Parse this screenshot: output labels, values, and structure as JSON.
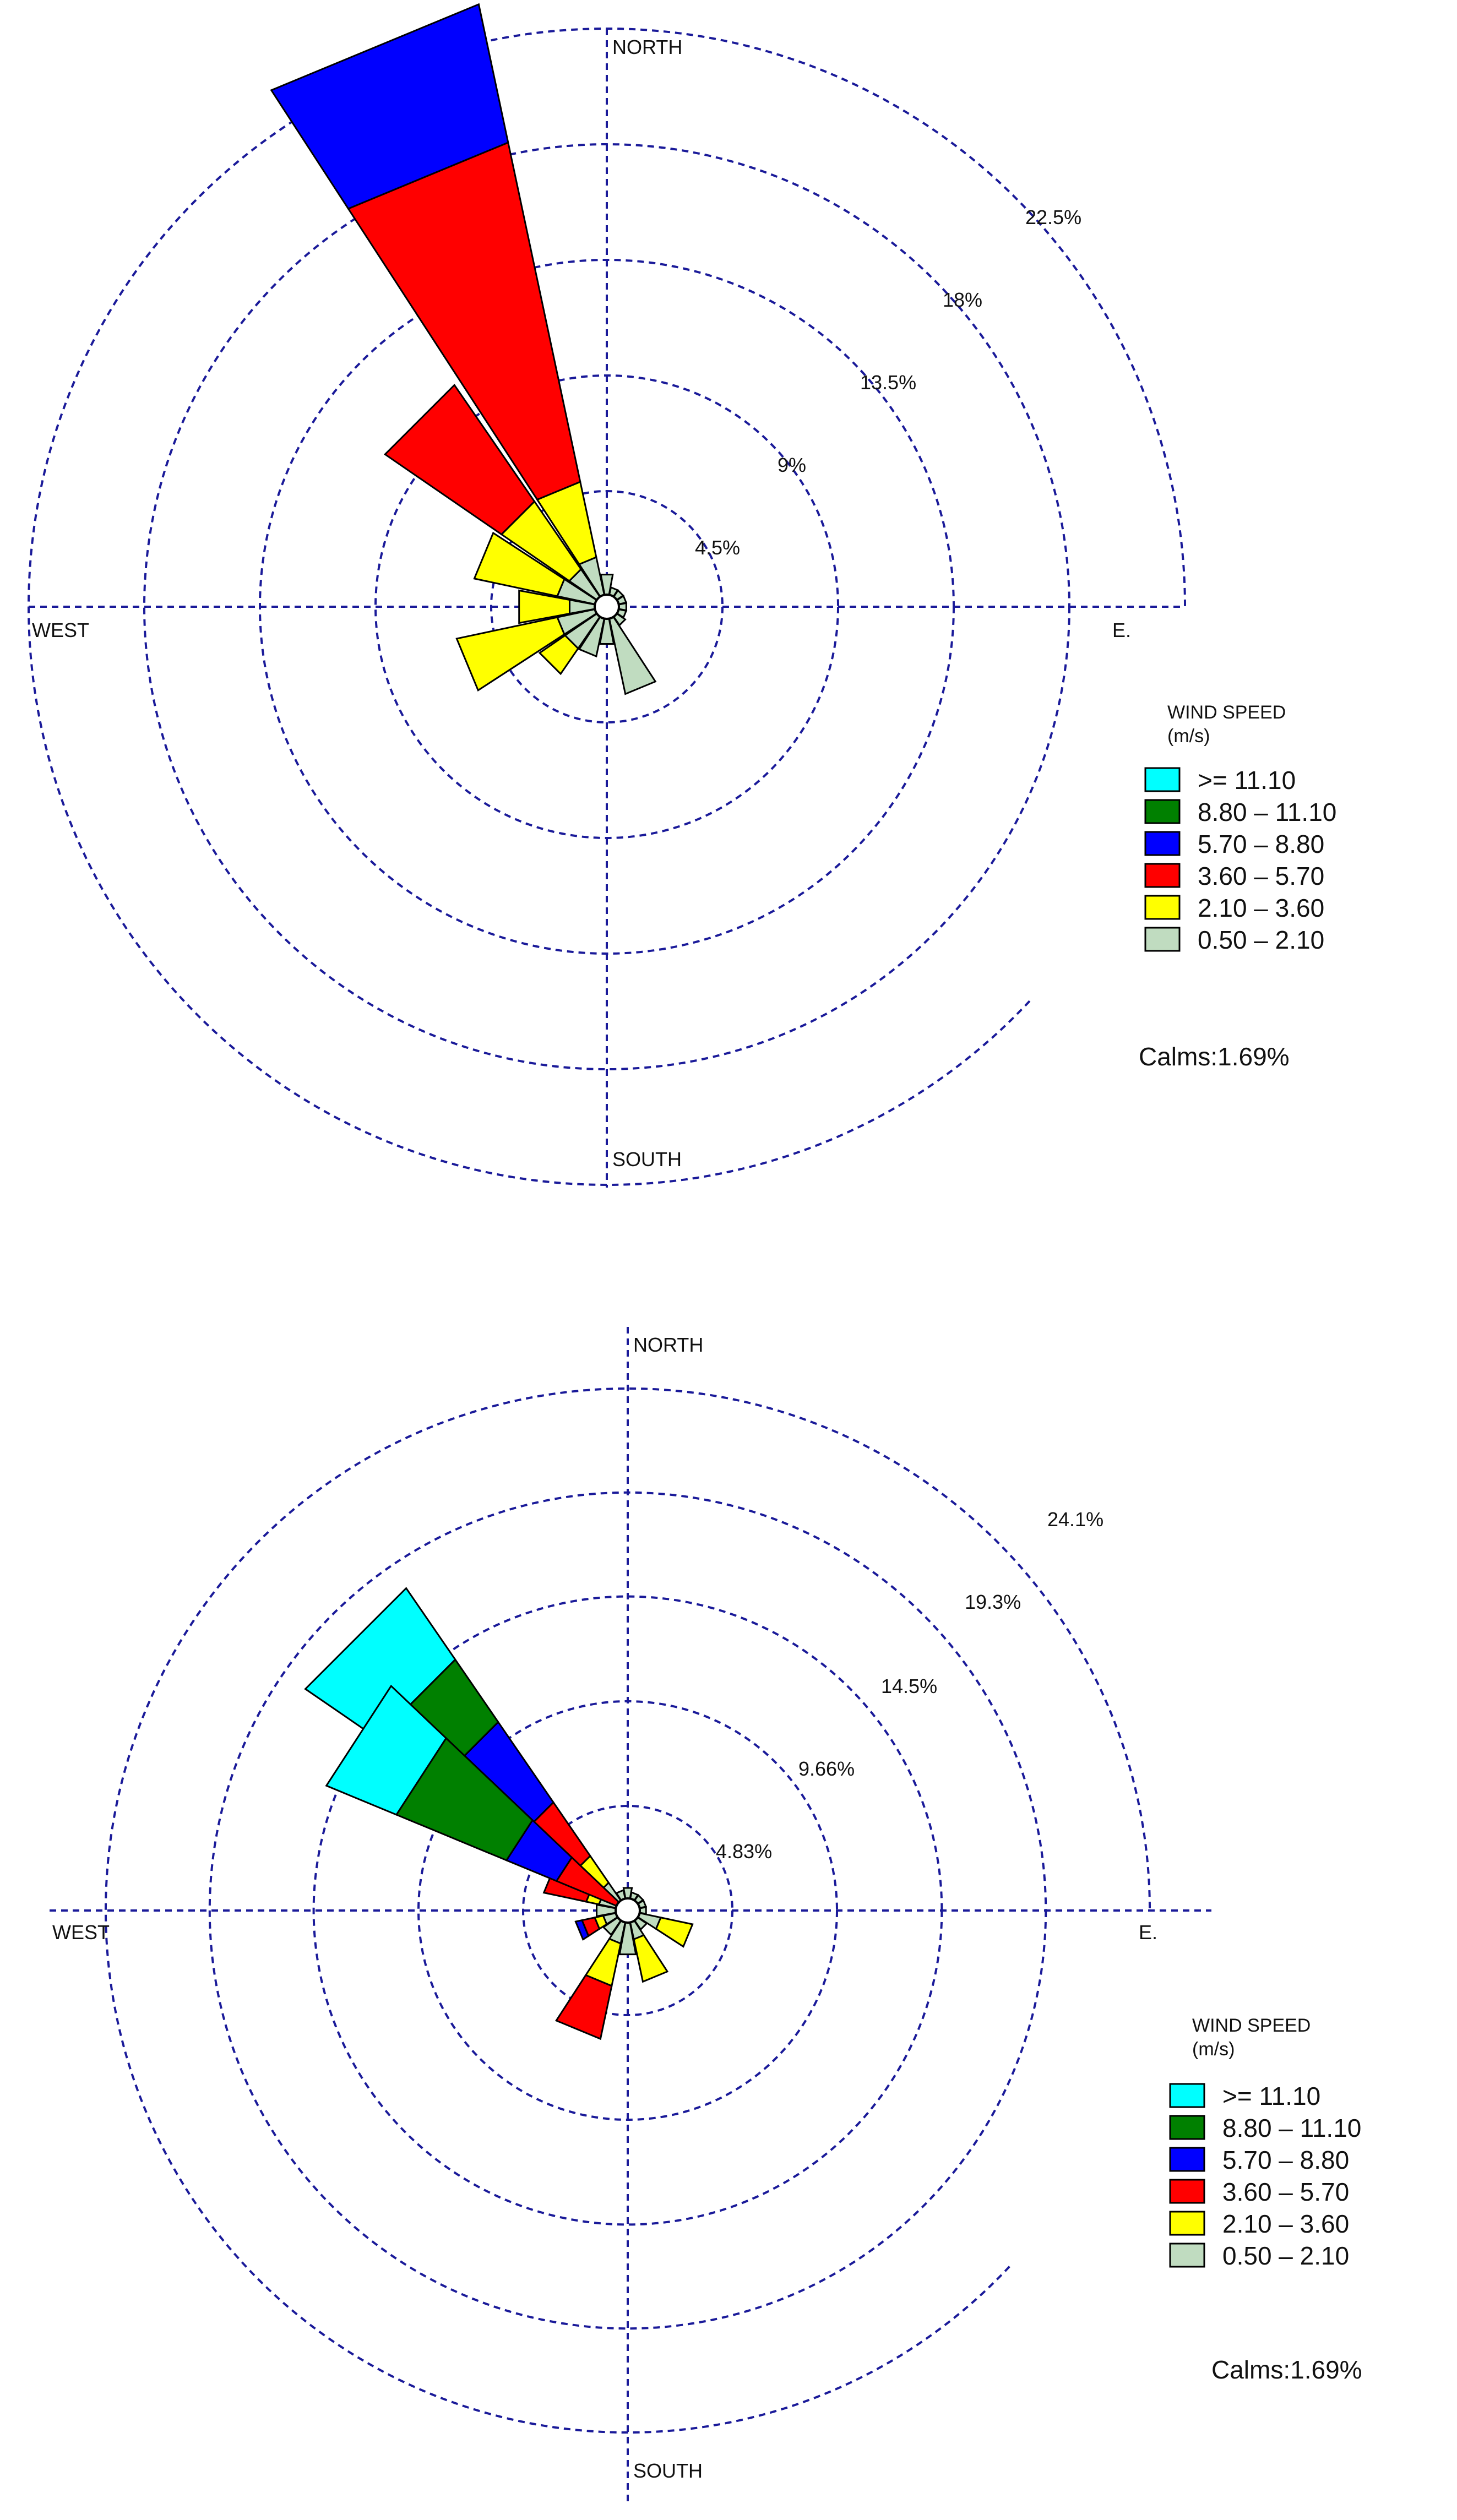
{
  "chart_data": [
    {
      "type": "windrose",
      "directions": [
        "N",
        "NNE",
        "NE",
        "ENE",
        "E",
        "ESE",
        "SE",
        "SSE",
        "S",
        "SSW",
        "SW",
        "WSW",
        "W",
        "WNW",
        "NW",
        "NNW"
      ],
      "direction_labels": {
        "north": "NORTH",
        "east": "E.",
        "south": "SOUTH",
        "west": "WEST"
      },
      "ring_labels": [
        "4.5%",
        "9%",
        "13.5%",
        "18%",
        "22.5%"
      ],
      "ring_values": [
        4.5,
        9,
        13.5,
        18,
        22.5
      ],
      "legend_title": "WIND SPEED",
      "legend_unit": "(m/s)",
      "calms": "Calms:1.69%",
      "speed_bins": [
        {
          "label": "0.50 – 2.10",
          "color": "#c0dcc0"
        },
        {
          "label": "2.10 – 3.60",
          "color": "#ffff00"
        },
        {
          "label": "3.60 – 5.70",
          "color": "#ff0000"
        },
        {
          "label": "5.70 – 8.80",
          "color": "#0000ff"
        },
        {
          "label": "8.80 – 11.10",
          "color": "#008000"
        },
        {
          "label": ">= 11.10",
          "color": "#00ffff"
        }
      ],
      "frequencies": {
        "N": [
          0.8,
          0,
          0,
          0,
          0,
          0
        ],
        "NNE": [
          0.3,
          0,
          0,
          0,
          0,
          0
        ],
        "NE": [
          0.3,
          0,
          0,
          0,
          0,
          0
        ],
        "ENE": [
          0.3,
          0,
          0,
          0,
          0,
          0
        ],
        "E": [
          0.3,
          0,
          0,
          0,
          0,
          0
        ],
        "ESE": [
          0.3,
          0,
          0,
          0,
          0,
          0
        ],
        "SE": [
          0.4,
          0,
          0,
          0,
          0,
          0
        ],
        "SSE": [
          3.0,
          0,
          0,
          0,
          0,
          0
        ],
        "S": [
          1.0,
          0,
          0,
          0,
          0,
          0
        ],
        "SSW": [
          1.5,
          0,
          0,
          0,
          0,
          0
        ],
        "SW": [
          1.5,
          1.2,
          0,
          0,
          0,
          0
        ],
        "WSW": [
          1.5,
          4.0,
          0,
          0,
          0,
          0
        ],
        "W": [
          1.0,
          2.0,
          0,
          0,
          0,
          0
        ],
        "WNW": [
          1.5,
          3.3,
          0,
          0,
          0,
          0
        ],
        "NW": [
          1.3,
          3.2,
          5.5,
          0,
          0,
          0
        ],
        "NNW": [
          1.5,
          3.0,
          13.5,
          5.5,
          0,
          0
        ]
      }
    },
    {
      "type": "windrose",
      "directions": [
        "N",
        "NNE",
        "NE",
        "ENE",
        "E",
        "ESE",
        "SE",
        "SSE",
        "S",
        "SSW",
        "SW",
        "WSW",
        "W",
        "WNW",
        "NW",
        "NNW"
      ],
      "direction_labels": {
        "north": "NORTH",
        "east": "E.",
        "south": "SOUTH",
        "west": "WEST"
      },
      "ring_labels": [
        "4.83%",
        "9.66%",
        "14.5%",
        "19.3%",
        "24.1%"
      ],
      "ring_values": [
        4.83,
        9.66,
        14.5,
        19.3,
        24.1
      ],
      "legend_title": "WIND SPEED",
      "legend_unit": "(m/s)",
      "calms": "Calms:1.69%",
      "speed_bins": [
        {
          "label": "0.50 – 2.10",
          "color": "#c0dcc0"
        },
        {
          "label": "2.10 – 3.60",
          "color": "#ffff00"
        },
        {
          "label": "3.60 – 5.70",
          "color": "#ff0000"
        },
        {
          "label": "5.70 – 8.80",
          "color": "#0000ff"
        },
        {
          "label": "8.80 – 11.10",
          "color": "#008000"
        },
        {
          "label": ">= 11.10",
          "color": "#00ffff"
        }
      ],
      "frequencies": {
        "N": [
          0.5,
          0,
          0,
          0,
          0,
          0
        ],
        "NNE": [
          0.3,
          0,
          0,
          0,
          0,
          0
        ],
        "NE": [
          0.3,
          0,
          0,
          0,
          0,
          0
        ],
        "ENE": [
          0.3,
          0,
          0,
          0,
          0,
          0
        ],
        "E": [
          0.3,
          0,
          0,
          0,
          0,
          0
        ],
        "ESE": [
          1.0,
          1.5,
          0,
          0,
          0,
          0
        ],
        "SE": [
          0.5,
          0,
          0,
          0,
          0,
          0
        ],
        "SSE": [
          0.8,
          2.0,
          0,
          0,
          0,
          0
        ],
        "S": [
          1.5,
          0,
          0,
          0,
          0,
          0
        ],
        "SSW": [
          1.0,
          2.0,
          2.5,
          0,
          0,
          0
        ],
        "SW": [
          0.8,
          0,
          0,
          0,
          0,
          0
        ],
        "WSW": [
          0.6,
          0.4,
          0.6,
          0.3,
          0,
          0
        ],
        "W": [
          0.9,
          0,
          0,
          0,
          0,
          0
        ],
        "WNW": [
          0.8,
          0.6,
          2.0,
          0,
          0,
          0
        ],
        "NW": [
          1.0,
          1.5,
          3.0,
          4.5,
          3.5,
          4.0
        ],
        "NNW": [
          0.4,
          0,
          0,
          0,
          0,
          0
        ],
        "NW_extra": [
          0,
          0,
          3.0,
          2.5,
          5.5,
          3.5
        ]
      }
    }
  ]
}
